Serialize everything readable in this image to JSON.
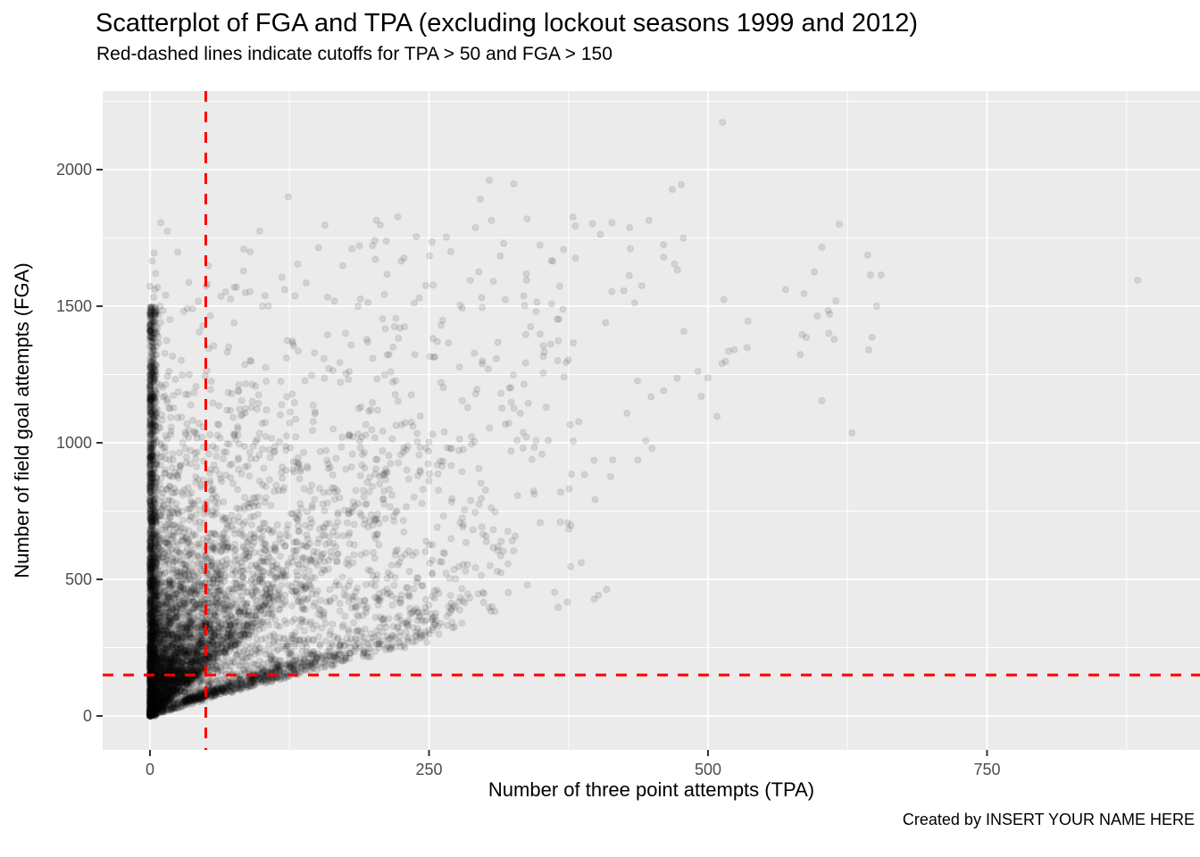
{
  "chart_data": {
    "type": "scatter",
    "title": "Scatterplot of FGA and TPA (excluding lockout seasons 1999 and 2012)",
    "subtitle": "Red-dashed lines indicate cutoffs for TPA > 50 and FGA > 150",
    "xlabel": "Number of three point attempts (TPA)",
    "ylabel": "Number of field goal attempts (FGA)",
    "caption": "Created by INSERT YOUR NAME HERE",
    "x_ticks": [
      0,
      250,
      500,
      750
    ],
    "y_ticks": [
      0,
      500,
      1000,
      1500,
      2000
    ],
    "x_minor_gridlines": [
      125,
      375,
      625,
      875
    ],
    "y_minor_gridlines": [
      250,
      750,
      1250,
      1750,
      2250
    ],
    "xlim": [
      -42.4,
      940.8
    ],
    "ylim": [
      -124.2,
      2287.6
    ],
    "grid": true,
    "legend": "none",
    "cutoffs": {
      "tpa": 50,
      "fga": 150
    },
    "styles": {
      "cutoff_color": "#FF0000",
      "panel_bg": "#EBEBEB",
      "grid_color": "#FFFFFF",
      "tick_color": "#333333",
      "tick_label_color": "#4D4D4D",
      "text_color": "#000000",
      "point_radius": 3.4,
      "point_fill_alpha": 0.1,
      "point_stroke_alpha": 0.12
    },
    "points_generator": {
      "seed": 19992012,
      "n_total": 7981,
      "groups": [
        {
          "name": "zero-tpa-column",
          "form": "column",
          "n": 1200,
          "tpa_max": 6,
          "tpa_k": 2.0,
          "fga_max": 1500,
          "fga_k": 1.35
        },
        {
          "name": "main-cloud",
          "form": "ratio-cloud",
          "n": 6300,
          "fga_mix": [
            {
              "w": 0.55,
              "offset": 0,
              "scale": 210,
              "max": 1840
            },
            {
              "w": 0.45,
              "offset": 120,
              "scale": 480,
              "max": 1810
            }
          ],
          "ratio": {
            "p_low": 0.72,
            "low_max": 0.3,
            "low_k": 1.7,
            "high_base": 0.33,
            "high_c": 150,
            "high_cap": 0.88,
            "high_k": 1.1
          }
        },
        {
          "name": "corner-specialists",
          "form": "diagonal-specialists",
          "n": 450,
          "tpa_offset": 30,
          "tpa_scale": 85,
          "tpa_max": 420,
          "slope_min": 1.02,
          "slope_rand": 0.45,
          "fga_offset": 15
        }
      ]
    },
    "notable_points": [
      [
        513,
        2173
      ],
      [
        304,
        1961
      ],
      [
        326,
        1948
      ],
      [
        476,
        1945
      ],
      [
        296,
        1892
      ],
      [
        124,
        1900
      ],
      [
        203,
        1814
      ],
      [
        222,
        1827
      ],
      [
        306,
        1814
      ],
      [
        338,
        1820
      ],
      [
        379,
        1827
      ],
      [
        447,
        1814
      ],
      [
        468,
        1928
      ],
      [
        2,
        1665
      ],
      [
        5,
        1620
      ],
      [
        14,
        1540
      ],
      [
        9,
        1500
      ],
      [
        885,
        1595
      ],
      [
        602,
        1716
      ],
      [
        643,
        1687
      ],
      [
        655,
        1614
      ],
      [
        651,
        1500
      ],
      [
        586,
        1546
      ],
      [
        598,
        1464
      ],
      [
        609,
        1471
      ],
      [
        588,
        1386
      ],
      [
        613,
        1379
      ],
      [
        647,
        1386
      ],
      [
        644,
        1340
      ],
      [
        602,
        1154
      ],
      [
        629,
        1036
      ]
    ]
  }
}
